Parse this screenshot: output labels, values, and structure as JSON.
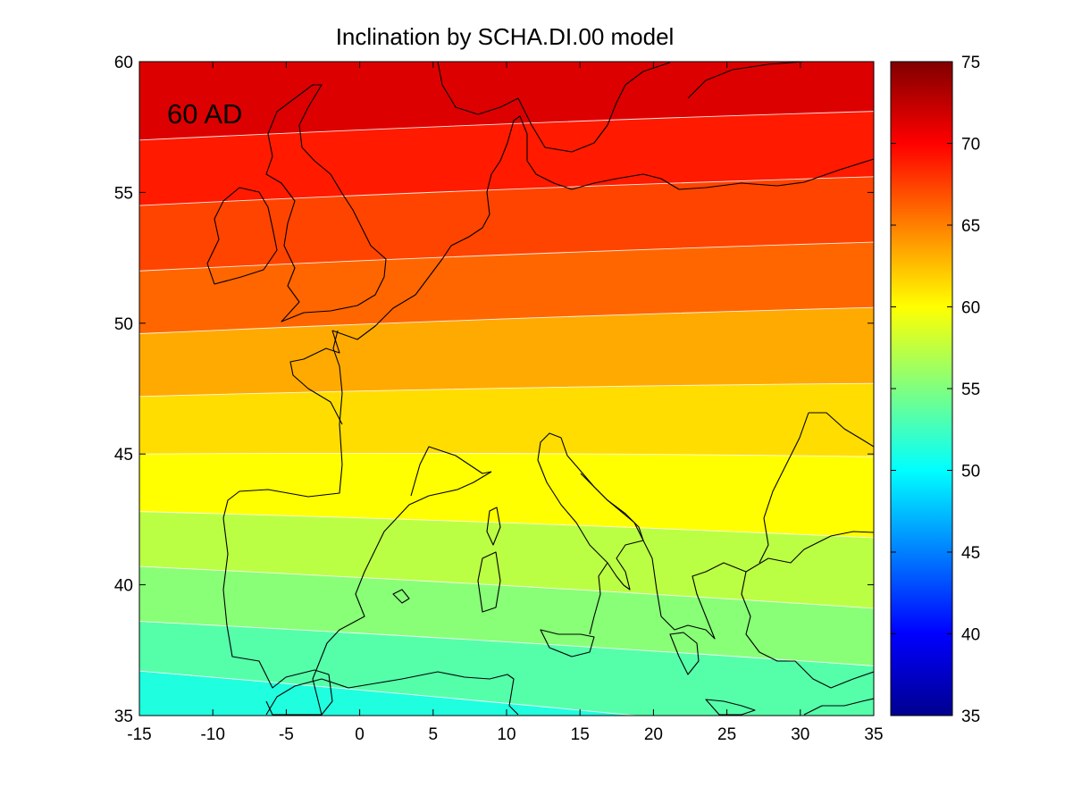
{
  "chart_data": {
    "type": "contourf",
    "title": "Inclination by SCHA.DI.00 model",
    "annotation": "60 AD",
    "xlim": [
      -15,
      35
    ],
    "ylim": [
      35,
      60
    ],
    "xticks": [
      -15,
      -10,
      -5,
      0,
      5,
      10,
      15,
      20,
      25,
      30,
      35
    ],
    "yticks": [
      35,
      40,
      45,
      50,
      55,
      60
    ],
    "colorbar": {
      "range": [
        35,
        75
      ],
      "ticks": [
        35,
        40,
        45,
        50,
        55,
        60,
        65,
        70,
        75
      ],
      "colormap": "jet"
    },
    "contour_interval": 2,
    "contour_levels": [
      {
        "value": 50,
        "lat_at_lon_m15": 34.7,
        "lat_at_lon_35": 32.5
      },
      {
        "value": 52,
        "lat_at_lon_m15": 36.7,
        "lat_at_lon_35": 34.1
      },
      {
        "value": 54,
        "lat_at_lon_m15": 38.6,
        "lat_at_lon_35": 36.9
      },
      {
        "value": 56,
        "lat_at_lon_m15": 40.7,
        "lat_at_lon_35": 39.1
      },
      {
        "value": 58,
        "lat_at_lon_m15": 42.8,
        "lat_at_lon_35": 41.8
      },
      {
        "value": 60,
        "lat_at_lon_m15": 45.0,
        "lat_at_lon_35": 44.9
      },
      {
        "value": 62,
        "lat_at_lon_m15": 47.2,
        "lat_at_lon_35": 47.7
      },
      {
        "value": 64,
        "lat_at_lon_m15": 49.6,
        "lat_at_lon_35": 50.6
      },
      {
        "value": 66,
        "lat_at_lon_m15": 52.0,
        "lat_at_lon_35": 53.1
      },
      {
        "value": 68,
        "lat_at_lon_m15": 54.5,
        "lat_at_lon_35": 55.6
      },
      {
        "value": 70,
        "lat_at_lon_m15": 57.0,
        "lat_at_lon_35": 58.1
      }
    ],
    "fill_colors": {
      "48-50": "#00eaff",
      "50-52": "#1fffe0",
      "52-54": "#55ffaa",
      "54-56": "#88ff77",
      "56-58": "#bbff44",
      "58-60": "#ffff00",
      "60-62": "#ffdd00",
      "62-64": "#ffaa00",
      "64-66": "#ff6600",
      "66-68": "#ff4400",
      "68-70": "#ff1a00",
      "70-72": "#dd0000"
    },
    "grid": false,
    "coastlines": true
  }
}
